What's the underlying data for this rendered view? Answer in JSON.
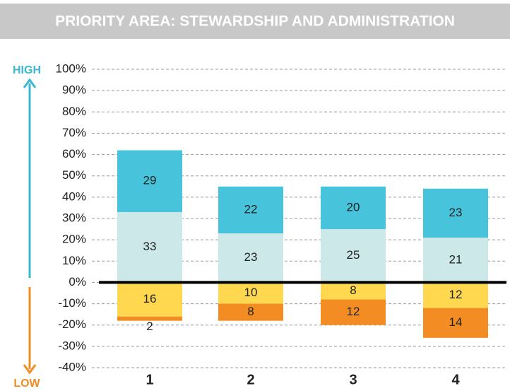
{
  "chart_data": {
    "type": "bar",
    "stacked": true,
    "title": "PRIORITY AREA: STEWARDSHIP AND ADMINISTRATION",
    "annotations": {
      "high": "HIGH",
      "low": "LOW"
    },
    "categories": [
      "1",
      "2",
      "3",
      "4"
    ],
    "series": [
      {
        "color": "#cce8e8",
        "values": [
          33,
          23,
          25,
          21
        ]
      },
      {
        "color": "#47c4dc",
        "values": [
          29,
          22,
          20,
          23
        ]
      },
      {
        "color": "#ffd84f",
        "values": [
          -16,
          -10,
          -8,
          -12
        ],
        "value_labels": [
          "16",
          "10",
          "8",
          "12"
        ]
      },
      {
        "color": "#f28c23",
        "values": [
          -2,
          -8,
          -12,
          -14
        ],
        "value_labels": [
          "2",
          "8",
          "12",
          "14"
        ]
      }
    ],
    "ylim": [
      -40,
      100
    ],
    "yticks": [
      {
        "value": 100,
        "label": "100%"
      },
      {
        "value": 90,
        "label": "90%"
      },
      {
        "value": 80,
        "label": "80%"
      },
      {
        "value": 70,
        "label": "70%"
      },
      {
        "value": 60,
        "label": "60%"
      },
      {
        "value": 50,
        "label": "50%"
      },
      {
        "value": 40,
        "label": "40%"
      },
      {
        "value": 30,
        "label": "30%"
      },
      {
        "value": 20,
        "label": "20%"
      },
      {
        "value": 10,
        "label": "10%"
      },
      {
        "value": 0,
        "label": "0%"
      },
      {
        "value": -10,
        "label": "-10%"
      },
      {
        "value": -20,
        "label": "-20%"
      },
      {
        "value": -30,
        "label": "-30%"
      },
      {
        "value": -40,
        "label": "-40%"
      }
    ],
    "grid": true
  }
}
